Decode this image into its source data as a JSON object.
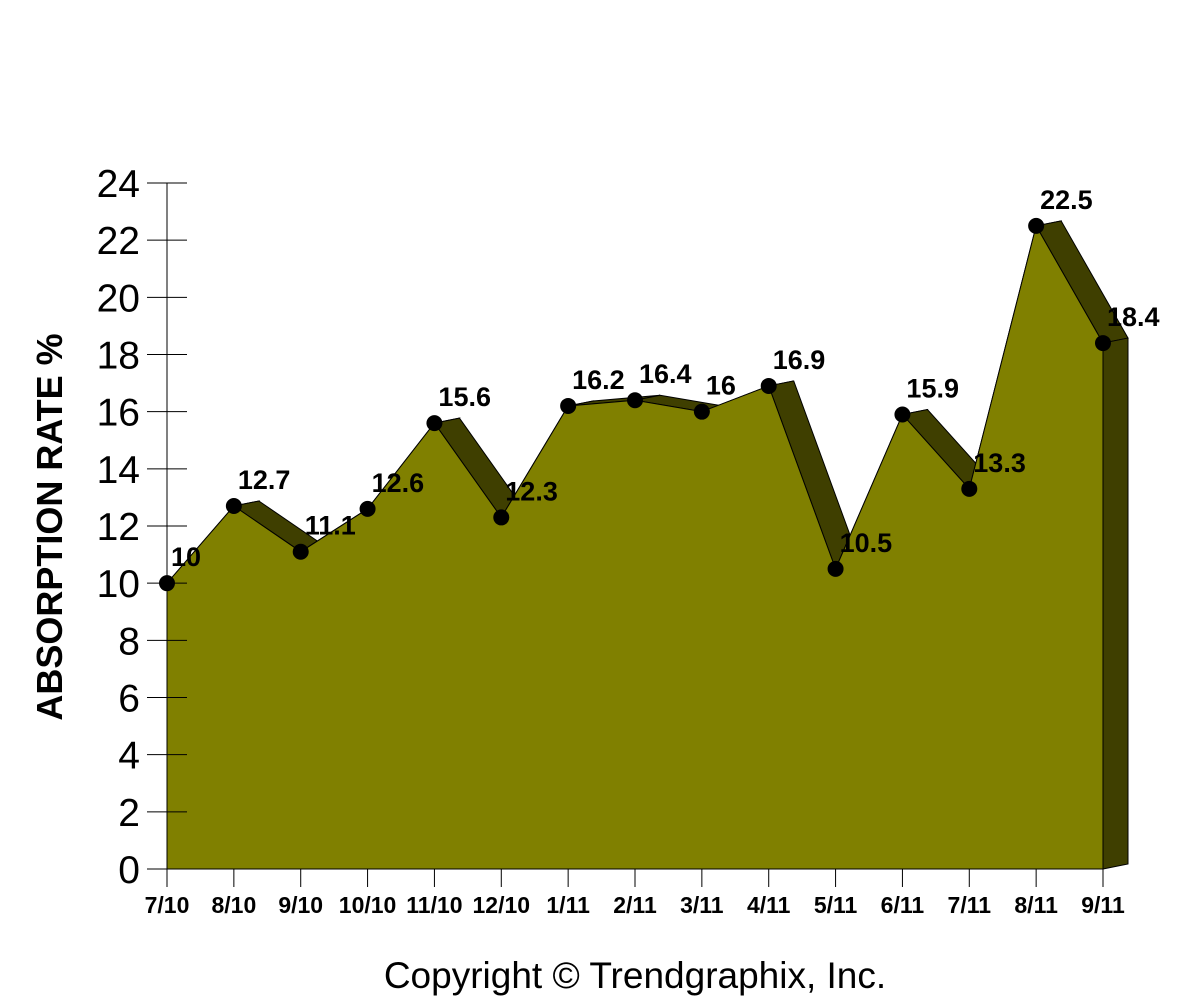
{
  "chart_data": {
    "type": "area",
    "ylabel": "ABSORPTION RATE %",
    "xlabel": "",
    "title": "",
    "categories": [
      "7/10",
      "8/10",
      "9/10",
      "10/10",
      "11/10",
      "12/10",
      "1/11",
      "2/11",
      "3/11",
      "4/11",
      "5/11",
      "6/11",
      "7/11",
      "8/11",
      "9/11"
    ],
    "values": [
      10,
      12.7,
      11.1,
      12.6,
      15.6,
      12.3,
      16.2,
      16.4,
      16,
      16.9,
      10.5,
      15.9,
      13.3,
      22.5,
      18.4
    ],
    "data_labels": [
      "10",
      "12.7",
      "11.1",
      "12.6",
      "15.6",
      "12.3",
      "16.2",
      "16.4",
      "16",
      "16.9",
      "10.5",
      "15.9",
      "13.3",
      "22.5",
      "18.4"
    ],
    "ylim": [
      0,
      24
    ],
    "yticks": [
      "0",
      "2",
      "4",
      "6",
      "8",
      "10",
      "12",
      "14",
      "16",
      "18",
      "20",
      "22",
      "24"
    ],
    "grid": false,
    "legend": "none",
    "colors": {
      "fill": "#808000",
      "side": "#3f3f00",
      "marker": "#000000"
    }
  },
  "footer": {
    "copyright": "Copyright © Trendgraphix, Inc."
  }
}
